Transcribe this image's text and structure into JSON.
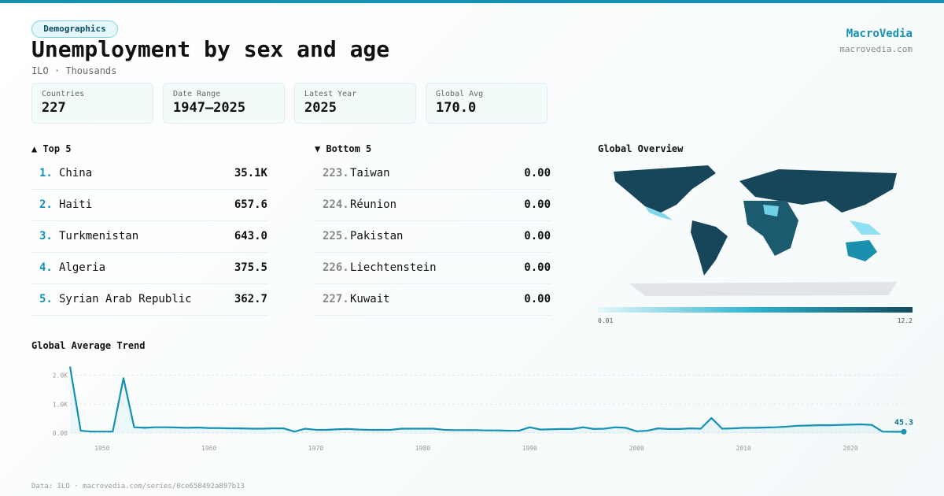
{
  "header": {
    "tag": "Demographics",
    "title": "Unemployment by sex and age",
    "subtitle": "ILO · Thousands",
    "brand": "MacroVedia",
    "site": "macrovedia.com"
  },
  "stats": [
    {
      "label": "Countries",
      "value": "227"
    },
    {
      "label": "Date Range",
      "value": "1947–2025"
    },
    {
      "label": "Latest Year",
      "value": "2025"
    },
    {
      "label": "Global Avg",
      "value": "170.0"
    }
  ],
  "top": {
    "title": "▲ Top 5",
    "rows": [
      {
        "rank": "1.",
        "name": "China",
        "value": "35.1K"
      },
      {
        "rank": "2.",
        "name": "Haiti",
        "value": "657.6"
      },
      {
        "rank": "3.",
        "name": "Turkmenistan",
        "value": "643.0"
      },
      {
        "rank": "4.",
        "name": "Algeria",
        "value": "375.5"
      },
      {
        "rank": "5.",
        "name": "Syrian Arab Republic",
        "value": "362.7"
      }
    ]
  },
  "bottom": {
    "title": "▼ Bottom 5",
    "rows": [
      {
        "rank": "223.",
        "name": "Taiwan",
        "value": "0.00"
      },
      {
        "rank": "224.",
        "name": "Réunion",
        "value": "0.00"
      },
      {
        "rank": "225.",
        "name": "Pakistan",
        "value": "0.00"
      },
      {
        "rank": "226.",
        "name": "Liechtenstein",
        "value": "0.00"
      },
      {
        "rank": "227.",
        "name": "Kuwait",
        "value": "0.00"
      }
    ]
  },
  "map": {
    "title": "Global Overview",
    "scale_min": "0.01",
    "scale_max": "12.2"
  },
  "chart_data": {
    "type": "line",
    "title": "Global Average Trend",
    "x": [
      1947,
      1948,
      1949,
      1950,
      1951,
      1952,
      1953,
      1954,
      1955,
      1956,
      1957,
      1958,
      1959,
      1960,
      1961,
      1962,
      1963,
      1964,
      1965,
      1966,
      1967,
      1968,
      1969,
      1970,
      1971,
      1972,
      1973,
      1974,
      1975,
      1976,
      1977,
      1978,
      1979,
      1980,
      1981,
      1982,
      1983,
      1984,
      1985,
      1986,
      1987,
      1988,
      1989,
      1990,
      1991,
      1992,
      1993,
      1994,
      1995,
      1996,
      1997,
      1998,
      1999,
      2000,
      2001,
      2002,
      2003,
      2004,
      2005,
      2006,
      2007,
      2008,
      2009,
      2010,
      2011,
      2012,
      2013,
      2014,
      2015,
      2016,
      2017,
      2018,
      2019,
      2020,
      2021,
      2022,
      2023,
      2024,
      2025
    ],
    "series": [
      {
        "color": "#1591b3",
        "values": [
          2300,
          80,
          50,
          50,
          50,
          1900,
          200,
          180,
          200,
          200,
          190,
          180,
          190,
          170,
          170,
          160,
          160,
          150,
          150,
          160,
          160,
          50,
          150,
          110,
          110,
          130,
          140,
          120,
          110,
          110,
          110,
          150,
          150,
          150,
          150,
          110,
          100,
          100,
          100,
          90,
          90,
          80,
          80,
          200,
          120,
          130,
          140,
          140,
          200,
          140,
          150,
          200,
          180,
          60,
          80,
          160,
          140,
          140,
          160,
          150,
          520,
          150,
          160,
          180,
          180,
          190,
          200,
          220,
          250,
          260,
          270,
          270,
          280,
          290,
          300,
          280,
          50,
          45,
          45.3
        ]
      }
    ],
    "xlim": [
      1947,
      2025
    ],
    "xticks": [
      1950,
      1960,
      1970,
      1980,
      1990,
      2000,
      2010,
      2020
    ],
    "ylim": [
      0,
      2400
    ],
    "yticks": [
      {
        "value": 0,
        "label": "0.00"
      },
      {
        "value": 1000,
        "label": "1.0K"
      },
      {
        "value": 2000,
        "label": "2.0K"
      }
    ],
    "grid": true
  },
  "footer": "Data: ILO · macrovedia.com/series/0ce658492a897b13"
}
